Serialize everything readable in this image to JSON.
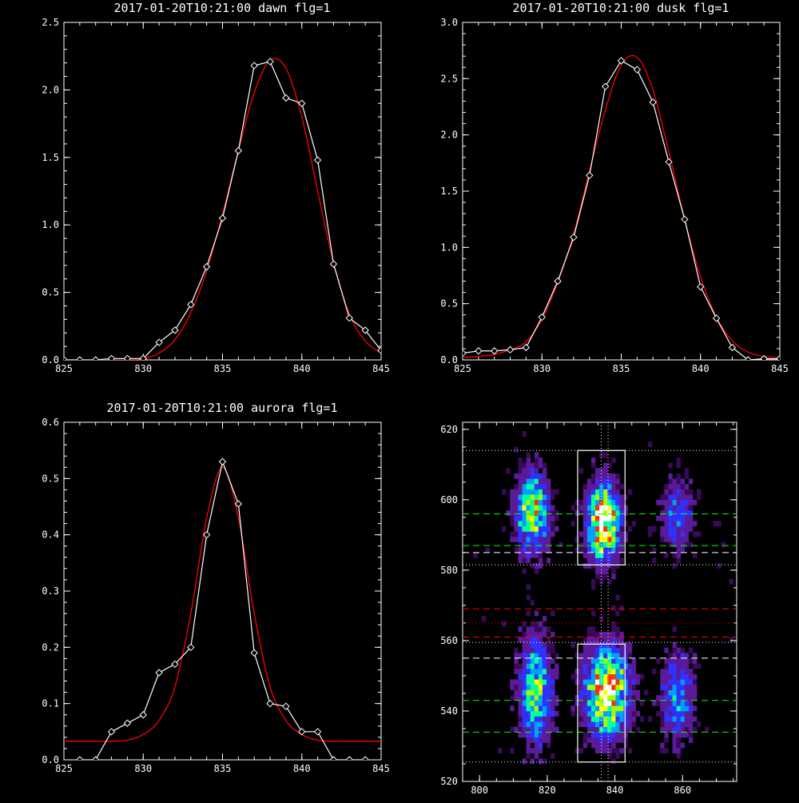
{
  "chart_data": [
    {
      "type": "line",
      "title": "2017-01-20T10:21:00 dawn flg=1",
      "xlim": [
        825,
        845
      ],
      "ylim": [
        0,
        2.5
      ],
      "xticks": [
        "825",
        "830",
        "835",
        "840",
        "845"
      ],
      "yticks": [
        "0.0",
        "0.5",
        "1.0",
        "1.5",
        "2.0",
        "2.5"
      ],
      "series": [
        {
          "kind": "observed",
          "color": "#ffffff",
          "marker": "diamond",
          "x": [
            825,
            826,
            827,
            828,
            829,
            830,
            831,
            832,
            833,
            834,
            835,
            836,
            837,
            838,
            839,
            840,
            841,
            842,
            843,
            844,
            845
          ],
          "y": [
            0.0,
            0.0,
            0.0,
            0.01,
            0.01,
            0.01,
            0.13,
            0.22,
            0.41,
            0.69,
            1.05,
            1.55,
            2.18,
            2.21,
            1.94,
            1.9,
            1.48,
            0.71,
            0.31,
            0.22,
            0.07
          ]
        },
        {
          "kind": "fit",
          "color": "#ff0000",
          "x": [
            825,
            826,
            827,
            828,
            829,
            830,
            831,
            832,
            833,
            834,
            835,
            836,
            837,
            838,
            839,
            840,
            841,
            842,
            843,
            844,
            845
          ],
          "y": [
            0.0,
            0.0,
            0.0,
            0.0,
            0.0,
            0.01,
            0.05,
            0.15,
            0.35,
            0.66,
            1.08,
            1.55,
            1.98,
            2.22,
            2.16,
            1.8,
            1.25,
            0.72,
            0.34,
            0.14,
            0.05
          ]
        }
      ]
    },
    {
      "type": "line",
      "title": "2017-01-20T10:21:00 dusk flg=1",
      "xlim": [
        825,
        845
      ],
      "ylim": [
        0,
        3.0
      ],
      "xticks": [
        "825",
        "830",
        "835",
        "840",
        "845"
      ],
      "yticks": [
        "0.0",
        "0.5",
        "1.0",
        "1.5",
        "2.0",
        "2.5",
        "3.0"
      ],
      "series": [
        {
          "kind": "observed",
          "color": "#ffffff",
          "marker": "diamond",
          "x": [
            825,
            826,
            827,
            828,
            829,
            830,
            831,
            832,
            833,
            834,
            835,
            836,
            837,
            838,
            839,
            840,
            841,
            842,
            843,
            844,
            845
          ],
          "y": [
            0.06,
            0.08,
            0.08,
            0.09,
            0.11,
            0.38,
            0.7,
            1.09,
            1.64,
            2.43,
            2.66,
            2.58,
            2.29,
            1.76,
            1.25,
            0.65,
            0.37,
            0.11,
            0.0,
            0.01,
            0.01
          ]
        },
        {
          "kind": "fit",
          "color": "#ff0000",
          "x": [
            825,
            826,
            827,
            828,
            829,
            830,
            831,
            832,
            833,
            834,
            835,
            836,
            837,
            838,
            839,
            840,
            841,
            842,
            843,
            844,
            845
          ],
          "y": [
            0.02,
            0.03,
            0.05,
            0.09,
            0.16,
            0.36,
            0.69,
            1.12,
            1.68,
            2.22,
            2.62,
            2.69,
            2.4,
            1.85,
            1.25,
            0.74,
            0.38,
            0.17,
            0.07,
            0.03,
            0.02
          ]
        }
      ]
    },
    {
      "type": "line",
      "title": "2017-01-20T10:21:00 aurora flg=1",
      "xlim": [
        825,
        845
      ],
      "ylim": [
        0,
        0.6
      ],
      "xticks": [
        "825",
        "830",
        "835",
        "840",
        "845"
      ],
      "yticks": [
        "0.0",
        "0.1",
        "0.2",
        "0.3",
        "0.4",
        "0.5",
        "0.6"
      ],
      "series": [
        {
          "kind": "observed",
          "color": "#ffffff",
          "marker": "diamond",
          "x": [
            826,
            827,
            828,
            829,
            830,
            831,
            832,
            833,
            834,
            835,
            836,
            837,
            838,
            839,
            840,
            841,
            842,
            843,
            844
          ],
          "y": [
            0.0,
            0.0,
            0.05,
            0.065,
            0.08,
            0.155,
            0.17,
            0.2,
            0.4,
            0.53,
            0.455,
            0.19,
            0.1,
            0.095,
            0.05,
            0.05,
            0.0,
            0.0,
            0.0
          ]
        },
        {
          "kind": "fit",
          "color": "#ff0000",
          "x": [
            825,
            826,
            827,
            828,
            829,
            830,
            831,
            832,
            833,
            834,
            835,
            836,
            837,
            838,
            839,
            840,
            841,
            842,
            843,
            844,
            845
          ],
          "y": [
            0.033,
            0.033,
            0.033,
            0.033,
            0.035,
            0.045,
            0.07,
            0.13,
            0.26,
            0.43,
            0.52,
            0.43,
            0.26,
            0.13,
            0.07,
            0.045,
            0.035,
            0.033,
            0.033,
            0.033,
            0.033
          ]
        }
      ]
    },
    {
      "type": "heatmap",
      "title": "",
      "xlim": [
        795,
        876
      ],
      "ylim": [
        520,
        622
      ],
      "xticks": [
        "800",
        "820",
        "840",
        "860"
      ],
      "yticks": [
        "520",
        "540",
        "560",
        "580",
        "600",
        "620"
      ],
      "colormap": [
        "#3a0a5a",
        "#5a1a9a",
        "#3030ff",
        "#00a0ff",
        "#00ffa0",
        "#a0ff00",
        "#ffff00",
        "#ff3000",
        "#ffffff"
      ],
      "blobs": [
        {
          "cx": 815,
          "cy": 596,
          "sx": 3,
          "sy": 7,
          "amp": 0.75
        },
        {
          "cx": 816,
          "cy": 545,
          "sx": 3,
          "sy": 9,
          "amp": 0.6
        },
        {
          "cx": 836,
          "cy": 593,
          "sx": 3,
          "sy": 7,
          "amp": 1.0
        },
        {
          "cx": 837,
          "cy": 545,
          "sx": 4,
          "sy": 8,
          "amp": 0.95
        },
        {
          "cx": 858,
          "cy": 595,
          "sx": 3,
          "sy": 6,
          "amp": 0.35
        },
        {
          "cx": 858,
          "cy": 543,
          "sx": 3,
          "sy": 8,
          "amp": 0.4
        }
      ],
      "boxes": [
        {
          "x": [
            829,
            843
          ],
          "y": [
            581.5,
            614
          ]
        },
        {
          "x": [
            829,
            843
          ],
          "y": [
            525.5,
            559
          ]
        }
      ],
      "vlines": [
        {
          "x": 836,
          "color": "#ffffff",
          "dash": "dotted"
        },
        {
          "x": 838,
          "color": "#ffffff",
          "dash": "dotted"
        }
      ],
      "hlines": [
        {
          "y": 614,
          "color": "#ffffff",
          "dash": "dotted"
        },
        {
          "y": 596,
          "color": "#00ff00",
          "dash": "dashed"
        },
        {
          "y": 587,
          "color": "#00ff00",
          "dash": "dashed"
        },
        {
          "y": 585,
          "color": "#ffffff",
          "dash": "dashed"
        },
        {
          "y": 581.5,
          "color": "#ffffff",
          "dash": "dotted"
        },
        {
          "y": 569,
          "color": "#ff0000",
          "dash": "dashed"
        },
        {
          "y": 565,
          "color": "#ff0000",
          "dash": "dotted"
        },
        {
          "y": 561,
          "color": "#ff0000",
          "dash": "dashed"
        },
        {
          "y": 559.5,
          "color": "#ffffff",
          "dash": "dotted"
        },
        {
          "y": 555,
          "color": "#ffffff",
          "dash": "dashed"
        },
        {
          "y": 543,
          "color": "#00ff00",
          "dash": "dashed"
        },
        {
          "y": 534,
          "color": "#00ff00",
          "dash": "dashed"
        },
        {
          "y": 525.5,
          "color": "#ffffff",
          "dash": "dotted"
        }
      ]
    }
  ]
}
